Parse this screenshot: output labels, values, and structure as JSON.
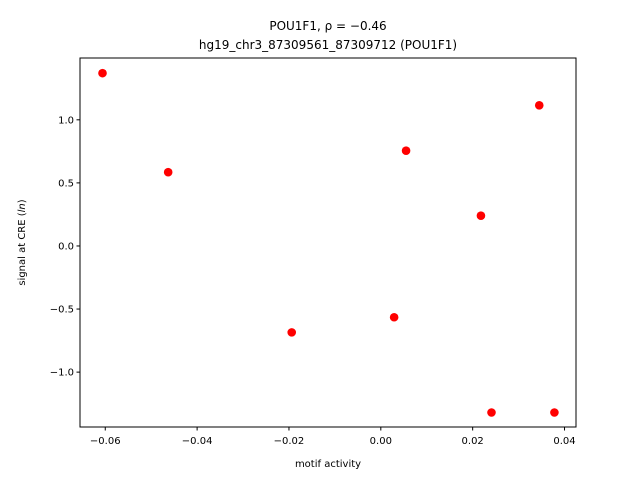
{
  "chart_data": {
    "type": "scatter",
    "title_line1": "POU1F1, ρ = −0.46",
    "title_line2": "hg19_chr3_87309561_87309712 (POU1F1)",
    "xlabel": "motif activity",
    "ylabel": "signal at CRE (",
    "ylabel_italic": "ln",
    "ylabel_end": ")",
    "xlim": [
      -0.0655,
      0.0425
    ],
    "ylim": [
      -1.435,
      1.49
    ],
    "xticks": [
      -0.06,
      -0.04,
      -0.02,
      0.0,
      0.02,
      0.04
    ],
    "xtick_labels": [
      "−0.06",
      "−0.04",
      "−0.02",
      "0.00",
      "0.02",
      "0.04"
    ],
    "yticks": [
      -1.0,
      -0.5,
      0.0,
      0.5,
      1.0
    ],
    "ytick_labels": [
      "−1.0",
      "−0.5",
      "0.0",
      "0.5",
      "1.0"
    ],
    "grid": false,
    "marker_color": "#ff0000",
    "points": [
      {
        "x": -0.0606,
        "y": 1.37
      },
      {
        "x": -0.0463,
        "y": 0.585
      },
      {
        "x": -0.0194,
        "y": -0.685
      },
      {
        "x": 0.0029,
        "y": -0.565
      },
      {
        "x": 0.0055,
        "y": 0.755
      },
      {
        "x": 0.0218,
        "y": 0.24
      },
      {
        "x": 0.0241,
        "y": -1.32
      },
      {
        "x": 0.0345,
        "y": 1.115
      },
      {
        "x": 0.0378,
        "y": -1.32
      }
    ]
  }
}
